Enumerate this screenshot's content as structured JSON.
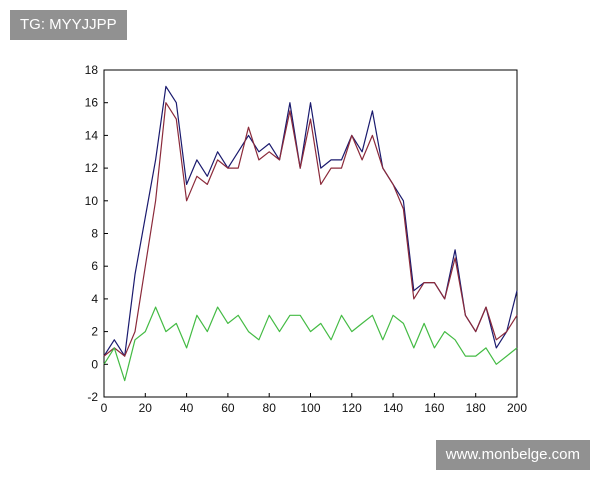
{
  "watermarks": {
    "top_left": "TG: MYYJJPP",
    "bottom_right": "www.monbelge.com"
  },
  "chart_data": {
    "type": "line",
    "title": "",
    "xlabel": "",
    "ylabel": "",
    "xlim": [
      0,
      200
    ],
    "ylim": [
      -2,
      18
    ],
    "x_ticks": [
      0,
      20,
      40,
      60,
      80,
      100,
      120,
      140,
      160,
      180,
      200
    ],
    "y_ticks": [
      -2,
      0,
      2,
      4,
      6,
      8,
      10,
      12,
      14,
      16,
      18
    ],
    "grid": false,
    "legend": "none",
    "x": [
      0,
      5,
      10,
      15,
      20,
      25,
      30,
      35,
      40,
      45,
      50,
      55,
      60,
      65,
      70,
      75,
      80,
      85,
      90,
      95,
      100,
      105,
      110,
      115,
      120,
      125,
      130,
      135,
      140,
      145,
      150,
      155,
      160,
      165,
      170,
      175,
      180,
      185,
      190,
      195,
      200
    ],
    "series": [
      {
        "color": "#1a1a6e",
        "values": [
          0.5,
          1.5,
          0.5,
          5.5,
          9,
          12.5,
          17,
          16,
          11,
          12.5,
          11.5,
          13,
          12,
          13,
          14,
          13,
          13.5,
          12.5,
          16,
          12,
          16,
          12,
          12.5,
          12.5,
          14,
          13,
          15.5,
          12,
          11,
          10,
          4.5,
          5,
          5,
          4,
          7,
          3,
          2,
          3.5,
          1,
          2,
          4.5
        ]
      },
      {
        "color": "#8b2a3a",
        "values": [
          0.5,
          1,
          0.5,
          2,
          6,
          10,
          16,
          15,
          10,
          11.5,
          11,
          12.5,
          12,
          12,
          14.5,
          12.5,
          13,
          12.5,
          15.5,
          12,
          15,
          11,
          12,
          12,
          14,
          12.5,
          14,
          12,
          11,
          9.5,
          4,
          5,
          5,
          4,
          6.5,
          3,
          2,
          3.5,
          1.5,
          2,
          3
        ]
      },
      {
        "color": "#44bb44",
        "values": [
          0,
          1,
          -1,
          1.5,
          2,
          3.5,
          2,
          2.5,
          1,
          3,
          2,
          3.5,
          2.5,
          3,
          2,
          1.5,
          3,
          2,
          3,
          3,
          2,
          2.5,
          1.5,
          3,
          2,
          2.5,
          3,
          1.5,
          3,
          2.5,
          1,
          2.5,
          1,
          2,
          1.5,
          0.5,
          0.5,
          1,
          0,
          0.5,
          1
        ]
      }
    ]
  }
}
